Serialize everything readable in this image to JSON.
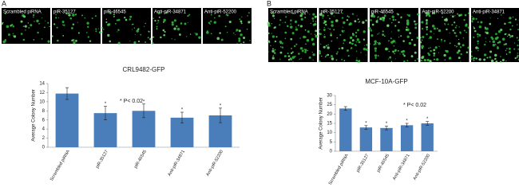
{
  "chart_data": [
    {
      "type": "bar",
      "panel": "A",
      "image_labels": [
        "Scrambled piRNA",
        "piR-35127",
        "piR-46545",
        "Anti-piR-34871",
        "Anti-piR-52200"
      ],
      "title": "CRL9482-GFP",
      "ylabel": "Average Colony Number",
      "annotation": "* P< 0.02",
      "categories": [
        "Scrambled piRNA",
        "piR-35127",
        "piR-46545",
        "Anti-piR-34871",
        "Anti-piR-52200"
      ],
      "values": [
        11.8,
        7.5,
        8,
        6.5,
        7
      ],
      "errors": [
        1.3,
        1.5,
        1.5,
        1.2,
        1.6
      ],
      "marker_labels": [
        null,
        "*",
        "*",
        "*",
        "*"
      ],
      "color": "#4a7ebb",
      "ylim": [
        0,
        14
      ],
      "yticks": [
        0,
        2,
        4,
        6,
        8,
        10,
        12,
        14
      ]
    },
    {
      "type": "bar",
      "panel": "B",
      "image_labels": [
        "Scrambled piRNA",
        "piR-35127",
        "piR-46545",
        "Anti-piR-52200",
        "Anti-piR-34871"
      ],
      "title": "MCF-10A-GFP",
      "ylabel": "Average Colony Number",
      "annotation": "* P< 0.02",
      "categories": [
        "Scrambled piRNA",
        "piR-35127",
        "piR-46545",
        "Anti-piR-34871",
        "Anti-piR-52200"
      ],
      "values": [
        23,
        12.8,
        12.5,
        14,
        15
      ],
      "errors": [
        1,
        1,
        1,
        1,
        1
      ],
      "marker_labels": [
        null,
        "*",
        "*",
        "*",
        "*"
      ],
      "color": "#4a7ebb",
      "ylim": [
        0,
        30
      ],
      "yticks": [
        0,
        5,
        10,
        15,
        20,
        25,
        30
      ]
    }
  ]
}
